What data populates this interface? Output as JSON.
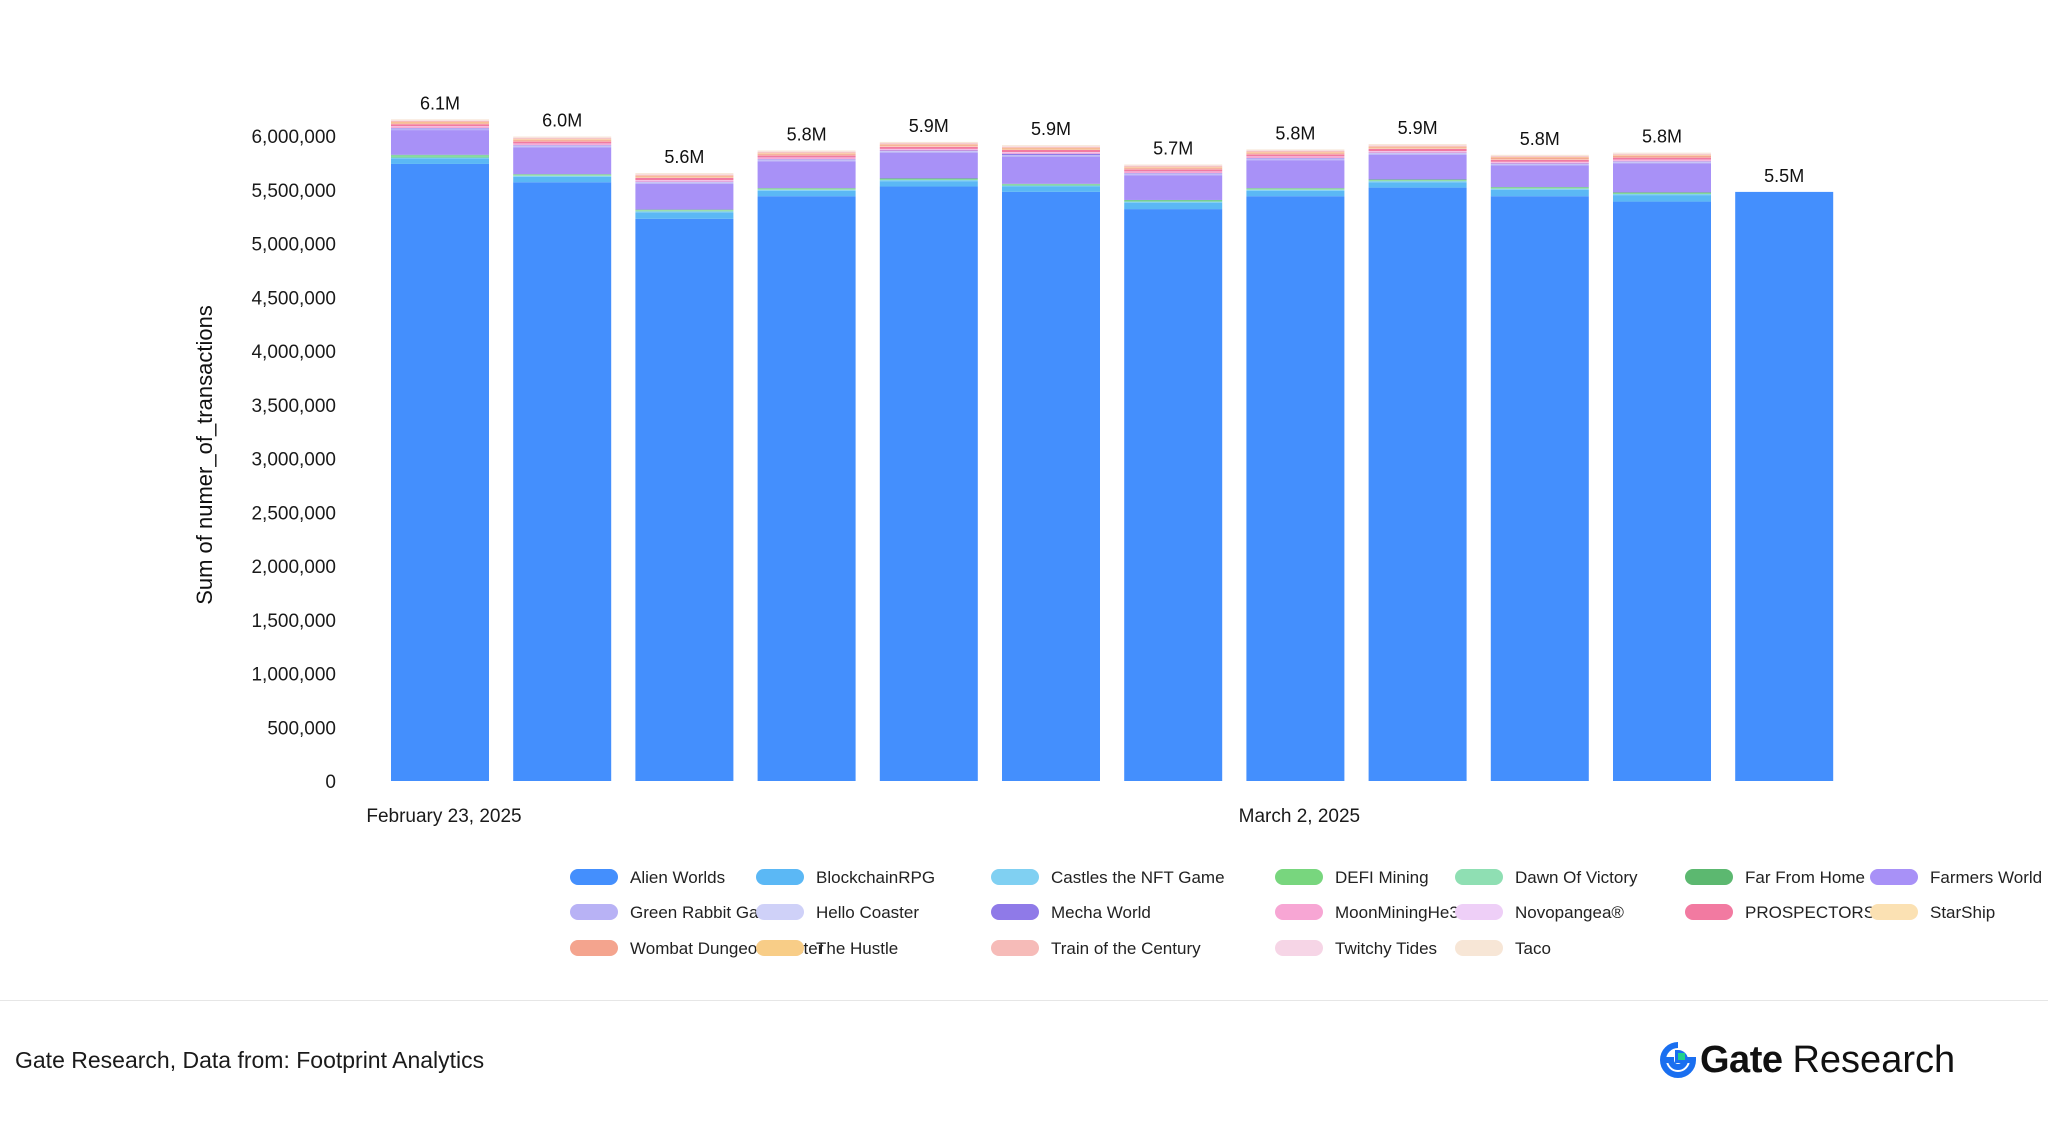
{
  "chart_data": {
    "type": "bar",
    "stacked": true,
    "title": "",
    "xlabel": "",
    "ylabel": "Sum of numer_of_transactions",
    "ylim": [
      0,
      6300000
    ],
    "y_ticks": [
      0,
      500000,
      1000000,
      1500000,
      2000000,
      2500000,
      3000000,
      3500000,
      4000000,
      4500000,
      5000000,
      5500000,
      6000000
    ],
    "y_tick_labels": [
      "0",
      "500,000",
      "1,000,000",
      "1,500,000",
      "2,000,000",
      "2,500,000",
      "3,000,000",
      "3,500,000",
      "4,000,000",
      "4,500,000",
      "5,000,000",
      "5,500,000",
      "6,000,000"
    ],
    "x_tick_labels": [
      {
        "index": 0,
        "text": "February 23, 2025"
      },
      {
        "index": 7,
        "text": "March 2, 2025"
      }
    ],
    "grid": false,
    "legend_position": "bottom",
    "total_labels": [
      "6.1M",
      "6.0M",
      "5.6M",
      "5.8M",
      "5.9M",
      "5.9M",
      "5.7M",
      "5.8M",
      "5.9M",
      "5.8M",
      "5.8M",
      "5.5M"
    ],
    "series": [
      {
        "name": "Alien Worlds",
        "color": "#448ffd",
        "values": [
          5740000,
          5570000,
          5230000,
          5440000,
          5530000,
          5480000,
          5320000,
          5440000,
          5520000,
          5440000,
          5390000,
          5480000
        ]
      },
      {
        "name": "BlockchainRPG",
        "color": "#5bb8f5",
        "values": [
          50000,
          50000,
          60000,
          50000,
          50000,
          50000,
          60000,
          50000,
          50000,
          60000,
          60000,
          0
        ]
      },
      {
        "name": "Castles the NFT Game",
        "color": "#80d0f2",
        "values": [
          10000,
          10000,
          10000,
          10000,
          10000,
          10000,
          10000,
          10000,
          10000,
          10000,
          10000,
          0
        ]
      },
      {
        "name": "DEFI Mining",
        "color": "#78d67e",
        "values": [
          10000,
          5000,
          5000,
          5000,
          5000,
          5000,
          5000,
          5000,
          5000,
          5000,
          5000,
          0
        ]
      },
      {
        "name": "Dawn Of Victory",
        "color": "#8fdfb3",
        "values": [
          10000,
          5000,
          5000,
          5000,
          5000,
          5000,
          5000,
          5000,
          5000,
          5000,
          5000,
          0
        ]
      },
      {
        "name": "Far From Home",
        "color": "#5cb870",
        "values": [
          5000,
          5000,
          5000,
          5000,
          5000,
          5000,
          5000,
          5000,
          5000,
          5000,
          5000,
          0
        ]
      },
      {
        "name": "Farmers World",
        "color": "#a891f7",
        "values": [
          230000,
          250000,
          240000,
          250000,
          240000,
          250000,
          230000,
          260000,
          230000,
          200000,
          270000,
          0
        ]
      },
      {
        "name": "Green Rabbit Game",
        "color": "#b8b2f5",
        "values": [
          10000,
          10000,
          10000,
          10000,
          10000,
          10000,
          10000,
          10000,
          10000,
          10000,
          10000,
          0
        ]
      },
      {
        "name": "Hello Coaster",
        "color": "#cfd1f8",
        "values": [
          5000,
          5000,
          5000,
          5000,
          5000,
          5000,
          5000,
          5000,
          5000,
          5000,
          5000,
          0
        ]
      },
      {
        "name": "Mecha World",
        "color": "#8f7ae8",
        "values": [
          5000,
          5000,
          5000,
          5000,
          5000,
          15000,
          5000,
          5000,
          5000,
          5000,
          5000,
          0
        ]
      },
      {
        "name": "MoonMiningHe3",
        "color": "#f7a6d4",
        "values": [
          10000,
          10000,
          10000,
          10000,
          10000,
          10000,
          10000,
          10000,
          10000,
          10000,
          10000,
          0
        ]
      },
      {
        "name": "Novopangea®",
        "color": "#eecff7",
        "values": [
          5000,
          5000,
          5000,
          5000,
          5000,
          5000,
          5000,
          5000,
          5000,
          5000,
          5000,
          0
        ]
      },
      {
        "name": "PROSPECTORS",
        "color": "#f27aa1",
        "values": [
          20000,
          20000,
          20000,
          20000,
          20000,
          20000,
          20000,
          20000,
          20000,
          20000,
          20000,
          0
        ]
      },
      {
        "name": "StarShip",
        "color": "#fbe1b3",
        "values": [
          5000,
          5000,
          5000,
          5000,
          5000,
          5000,
          5000,
          5000,
          5000,
          5000,
          5000,
          0
        ]
      },
      {
        "name": "Wombat Dungeon Master",
        "color": "#f4a48e",
        "values": [
          10000,
          10000,
          10000,
          10000,
          10000,
          10000,
          10000,
          10000,
          10000,
          10000,
          10000,
          0
        ]
      },
      {
        "name": "The Hustle",
        "color": "#f8cd87",
        "values": [
          5000,
          5000,
          5000,
          5000,
          5000,
          5000,
          5000,
          5000,
          5000,
          5000,
          5000,
          0
        ]
      },
      {
        "name": "Train of the Century",
        "color": "#f6bbb8",
        "values": [
          10000,
          10000,
          10000,
          10000,
          10000,
          10000,
          10000,
          10000,
          10000,
          10000,
          10000,
          0
        ]
      },
      {
        "name": "Twitchy Tides",
        "color": "#f6d5e6",
        "values": [
          5000,
          5000,
          5000,
          5000,
          5000,
          5000,
          5000,
          5000,
          5000,
          5000,
          5000,
          0
        ]
      },
      {
        "name": "Taco",
        "color": "#f7e6d6",
        "values": [
          10000,
          10000,
          10000,
          10000,
          10000,
          10000,
          10000,
          10000,
          10000,
          10000,
          10000,
          0
        ]
      }
    ]
  },
  "footer": {
    "source": "Gate Research, Data from: Footprint Analytics",
    "brand_name": "Gate",
    "brand_suffix": "Research"
  }
}
